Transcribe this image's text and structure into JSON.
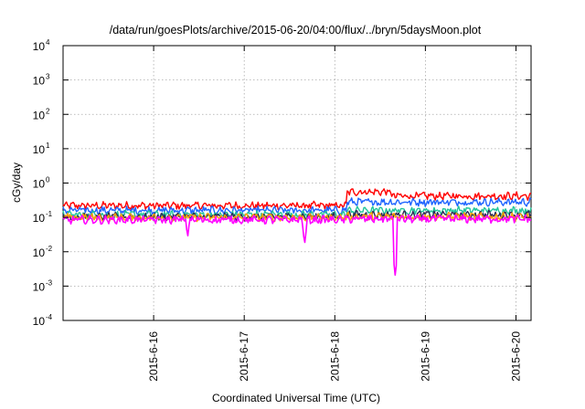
{
  "chart_data": {
    "type": "line",
    "title": "/data/run/goesPlots/archive/2015-06-20/04:00/flux/../bryn/5daysMoon.plot",
    "xlabel": "Coordinated Universal Time (UTC)",
    "ylabel": "cGy/day",
    "yscale": "log",
    "ylim": [
      0.0001,
      10000
    ],
    "y_ticks": [
      {
        "base": "10",
        "exp": "-4",
        "value": 0.0001
      },
      {
        "base": "10",
        "exp": "-3",
        "value": 0.001
      },
      {
        "base": "10",
        "exp": "-2",
        "value": 0.01
      },
      {
        "base": "10",
        "exp": "-1",
        "value": 0.1
      },
      {
        "base": "10",
        "exp": "0",
        "value": 1
      },
      {
        "base": "10",
        "exp": "1",
        "value": 10
      },
      {
        "base": "10",
        "exp": "2",
        "value": 100
      },
      {
        "base": "10",
        "exp": "3",
        "value": 1000
      },
      {
        "base": "10",
        "exp": "4",
        "value": 10000
      }
    ],
    "xlim": [
      "2015-06-15 00:00",
      "2015-06-20 04:00"
    ],
    "x_ticks": [
      "2015-6-16",
      "2015-6-17",
      "2015-6-18",
      "2015-6-19",
      "2015-6-20"
    ],
    "grid": true,
    "legend": "none",
    "series": [
      {
        "color": "#ff0000",
        "level_before": 0.22,
        "level_after": 0.42,
        "jump_time": "2015-06-18 03:00"
      },
      {
        "color": "#1e64ff",
        "level_before": 0.16,
        "level_after": 0.28,
        "jump_time": "2015-06-18 03:00"
      },
      {
        "color": "#22c59a",
        "level_before": 0.12,
        "level_after": 0.16,
        "jump_time": "2015-06-18 03:00"
      },
      {
        "color": "#2a2a55",
        "level_before": 0.105,
        "level_after": 0.12,
        "jump_time": "2015-06-18 03:00"
      },
      {
        "color": "#ffa000",
        "level_before": 0.1,
        "level_after": 0.105,
        "jump_time": "2015-06-18 03:00"
      },
      {
        "color": "#ff00ff",
        "level_before": 0.085,
        "level_after": 0.09,
        "jump_time": "2015-06-18 03:00"
      }
    ],
    "dips": [
      {
        "time": "2015-06-16 09:00",
        "value": 0.025
      },
      {
        "time": "2015-06-17 16:00",
        "value": 0.016
      },
      {
        "time": "2015-06-18 16:00",
        "value": 0.002
      }
    ]
  }
}
